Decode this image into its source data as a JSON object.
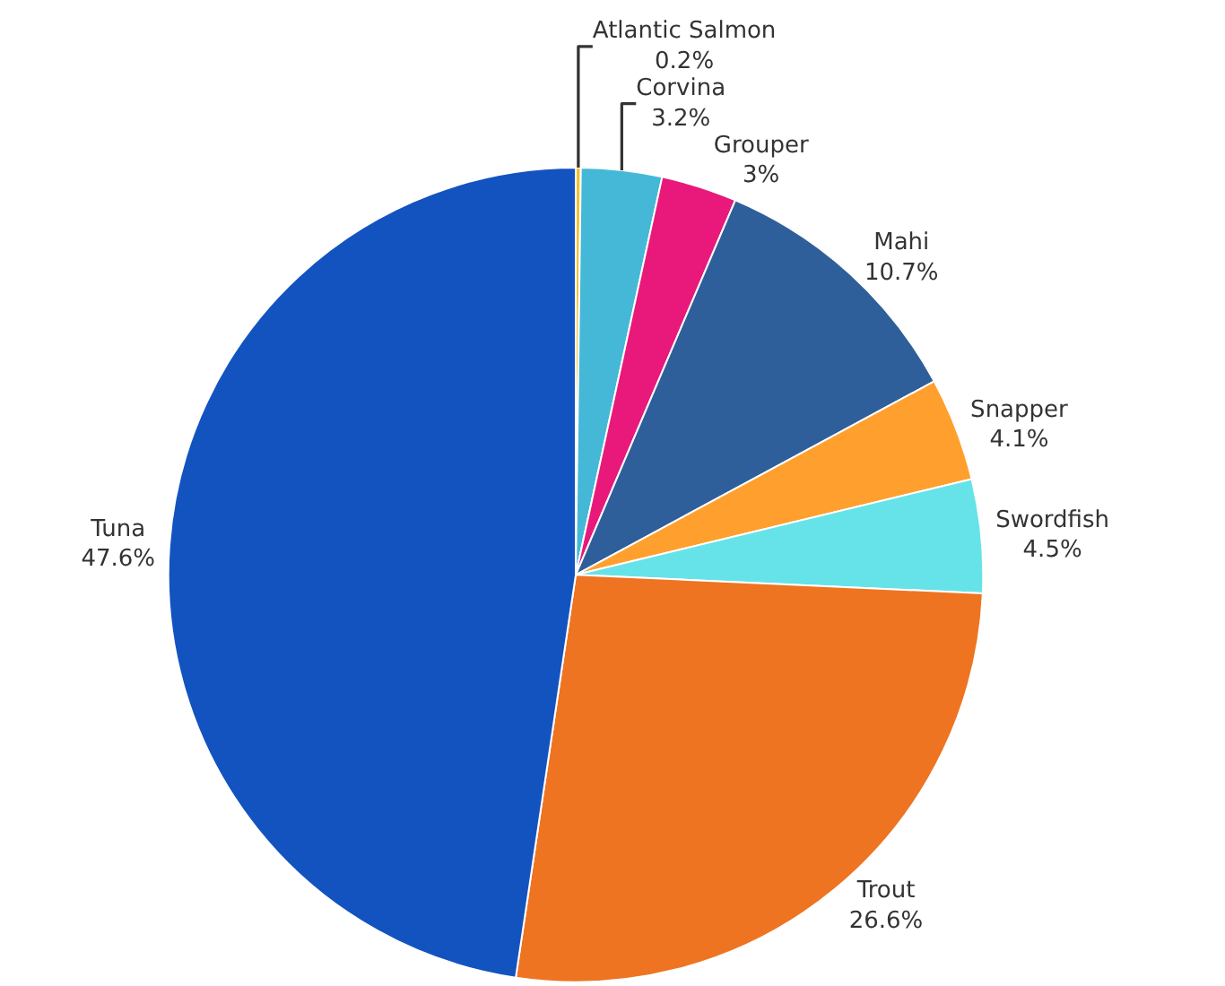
{
  "chart_data": {
    "type": "pie",
    "categories": [
      "Atlantic Salmon",
      "Corvina",
      "Grouper",
      "Mahi",
      "Snapper",
      "Swordfish",
      "Trout",
      "Tuna"
    ],
    "values": [
      0.2,
      3.2,
      3,
      10.7,
      4.1,
      4.5,
      26.6,
      47.6
    ],
    "value_labels": [
      "0.2%",
      "3.2%",
      "3%",
      "10.7%",
      "4.1%",
      "4.5%",
      "26.6%",
      "47.6%"
    ],
    "colors": [
      "#f2c12e",
      "#45b8d8",
      "#e8197a",
      "#2e5f9a",
      "#ffa02e",
      "#66e3e8",
      "#ee7421",
      "#1353c0"
    ],
    "legend": false
  }
}
